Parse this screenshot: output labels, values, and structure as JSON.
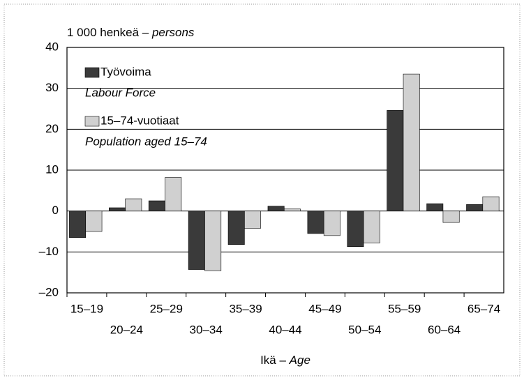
{
  "chart_data": {
    "type": "bar",
    "ylabel": "1 000 henkeä –",
    "ylabel_en": "persons",
    "xlabel": "Ikä –",
    "xlabel_en": "Age",
    "categories": [
      "15–19",
      "20–24",
      "25–29",
      "30–34",
      "35–39",
      "40–44",
      "45–49",
      "50–54",
      "55–59",
      "60–64",
      "65–74"
    ],
    "series": [
      {
        "name": "Työvoima",
        "name_en": "Labour Force",
        "color": "#3a3a3a",
        "values": [
          -6.5,
          0.8,
          2.5,
          -14.3,
          -8.2,
          1.2,
          -5.5,
          -8.7,
          24.6,
          1.8,
          1.6
        ]
      },
      {
        "name": "15–74-vuotiaat",
        "name_en": "Population aged 15–74",
        "color": "#d0d0d0",
        "values": [
          -5,
          3,
          8.2,
          -14.6,
          -4.2,
          0.5,
          -6,
          -7.8,
          33.5,
          -2.8,
          3.5
        ]
      }
    ],
    "ylim": [
      -20,
      40
    ],
    "yticks": [
      {
        "value": -20,
        "label": "–20"
      },
      {
        "value": -10,
        "label": "–10"
      },
      0,
      10,
      20,
      30,
      40
    ],
    "grid": true,
    "legend": "upper left"
  }
}
